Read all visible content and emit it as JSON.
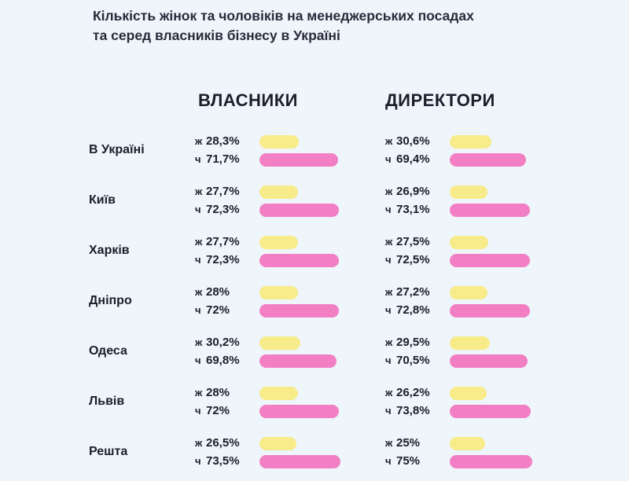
{
  "chart_data": {
    "type": "bar",
    "title_lines": [
      "Кількість жінок та чоловіків на менеджерських посадах",
      "та серед власників бізнесу в Україні"
    ],
    "groups": [
      "ВЛАСНИКИ",
      "ДИРЕКТОРИ"
    ],
    "gender_labels": {
      "women": "ж",
      "men": "ч"
    },
    "colors": {
      "women": "#f7eb8a",
      "men": "#f27fc4",
      "background": "#eef5fb"
    },
    "unit": "%",
    "categories": [
      "В Україні",
      "Київ",
      "Харків",
      "Дніпро",
      "Одеса",
      "Львів",
      "Решта"
    ],
    "series": [
      {
        "group": "ВЛАСНИКИ",
        "women": [
          28.3,
          27.7,
          27.7,
          28,
          30.2,
          28,
          26.5
        ],
        "men": [
          71.7,
          72.3,
          72.3,
          72,
          69.8,
          72,
          73.5
        ],
        "women_labels": [
          "28,3%",
          "27,7%",
          "27,7%",
          "28%",
          "30,2%",
          "28%",
          "26,5%"
        ],
        "men_labels": [
          "71,7%",
          "72,3%",
          "72,3%",
          "72%",
          "69,8%",
          "72%",
          "73,5%"
        ]
      },
      {
        "group": "ДИРЕКТОРИ",
        "women": [
          30.6,
          26.9,
          27.5,
          27.2,
          29.5,
          26.2,
          25
        ],
        "men": [
          69.4,
          73.1,
          72.5,
          72.8,
          70.5,
          73.8,
          75
        ],
        "women_labels": [
          "30,6%",
          "26,9%",
          "27,5%",
          "27,2%",
          "29,5%",
          "26,2%",
          "25%"
        ],
        "men_labels": [
          "69,4%",
          "73,1%",
          "72,5%",
          "72,8%",
          "70,5%",
          "73,8%",
          "75%"
        ]
      }
    ]
  }
}
